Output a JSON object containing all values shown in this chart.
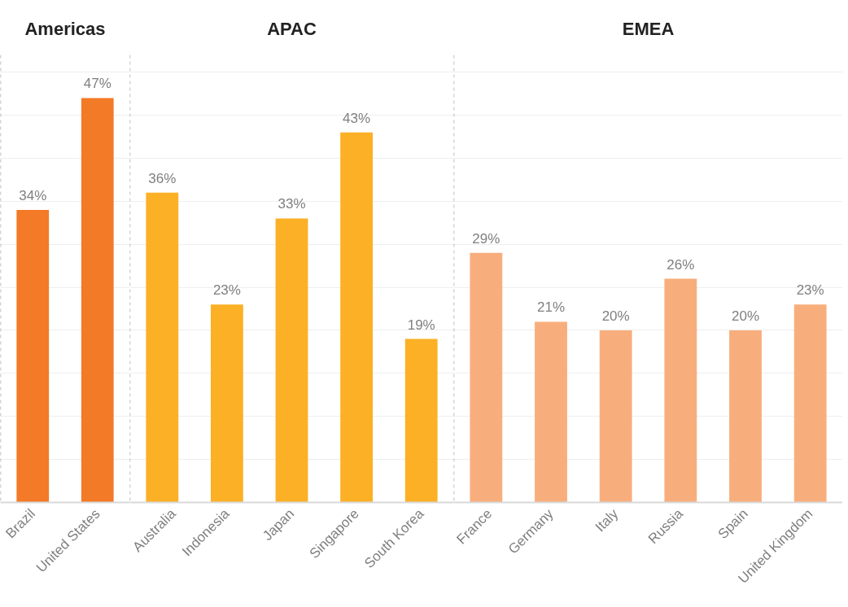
{
  "chart_data": [
    {
      "type": "bar",
      "title": "Americas",
      "categories": [
        "Brazil",
        "United States"
      ],
      "values": [
        34,
        47
      ],
      "color": "#f37a26",
      "value_labels": [
        "34%",
        "47%"
      ],
      "ylim": [
        0,
        52
      ],
      "yticks": [
        {
          "value": 0,
          "label": null
        },
        {
          "value": 5,
          "label": null
        },
        {
          "value": 10,
          "label": null
        },
        {
          "value": 15,
          "label": null
        },
        {
          "value": 20,
          "label": null
        },
        {
          "value": 25,
          "label": null
        },
        {
          "value": 30,
          "label": null
        },
        {
          "value": 35,
          "label": null
        },
        {
          "value": 40,
          "label": null
        },
        {
          "value": 45,
          "label": null
        },
        {
          "value": 50,
          "label": null
        }
      ],
      "grid": "y",
      "tick_labels": "x"
    },
    {
      "type": "bar",
      "title": "APAC",
      "categories": [
        "Australia",
        "Indonesia",
        "Japan",
        "Singapore",
        "South Korea"
      ],
      "values": [
        36,
        23,
        33,
        43,
        19
      ],
      "color": "#fbb026",
      "value_labels": [
        "36%",
        "23%",
        "33%",
        "43%",
        "19%"
      ],
      "ylim": [
        0,
        52
      ],
      "yticks": [
        {
          "value": 0,
          "label": null
        },
        {
          "value": 5,
          "label": null
        },
        {
          "value": 10,
          "label": null
        },
        {
          "value": 15,
          "label": null
        },
        {
          "value": 20,
          "label": null
        },
        {
          "value": 25,
          "label": null
        },
        {
          "value": 30,
          "label": null
        },
        {
          "value": 35,
          "label": null
        },
        {
          "value": 40,
          "label": null
        },
        {
          "value": 45,
          "label": null
        },
        {
          "value": 50,
          "label": null
        }
      ],
      "grid": "y",
      "tick_labels": "x"
    },
    {
      "type": "bar",
      "title": "EMEA",
      "categories": [
        "France",
        "Germany",
        "Italy",
        "Russia",
        "Spain",
        "United Kingdom"
      ],
      "values": [
        29,
        21,
        20,
        26,
        20,
        23
      ],
      "color": "#f8ae7c",
      "value_labels": [
        "29%",
        "21%",
        "20%",
        "26%",
        "20%",
        "23%"
      ],
      "ylim": [
        0,
        52
      ],
      "yticks": [
        {
          "value": 0,
          "label": null
        },
        {
          "value": 5,
          "label": null
        },
        {
          "value": 10,
          "label": null
        },
        {
          "value": 15,
          "label": null
        },
        {
          "value": 20,
          "label": null
        },
        {
          "value": 25,
          "label": null
        },
        {
          "value": 30,
          "label": null
        },
        {
          "value": 35,
          "label": null
        },
        {
          "value": 40,
          "label": null
        },
        {
          "value": 45,
          "label": null
        },
        {
          "value": 50,
          "label": null
        }
      ],
      "grid": "y",
      "tick_labels": "x"
    }
  ]
}
